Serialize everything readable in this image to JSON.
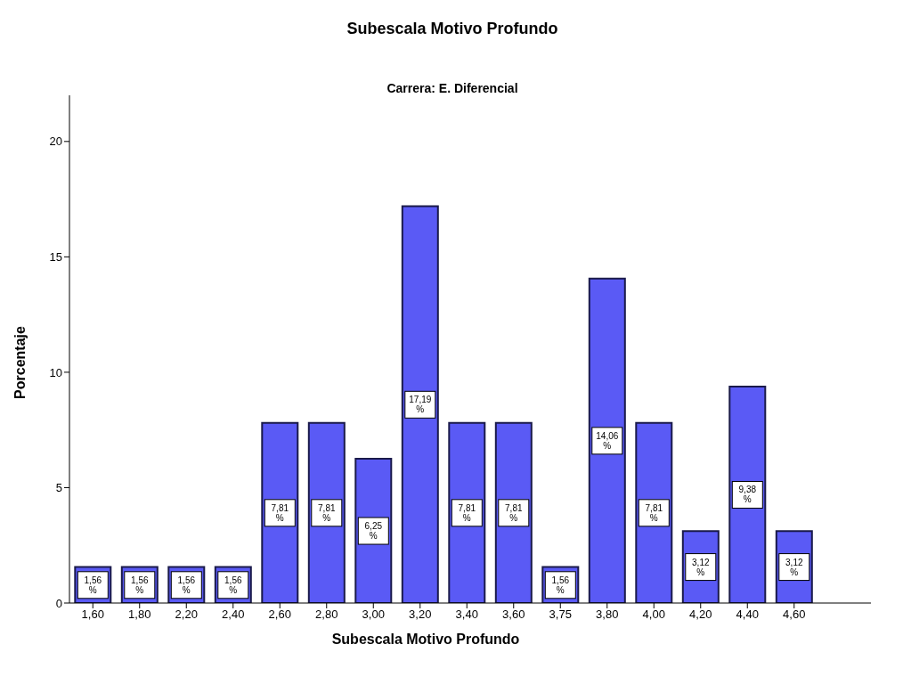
{
  "chart_data": {
    "type": "bar",
    "title": "Subescala Motivo Profundo",
    "subtitle": "Carrera: E. Diferencial",
    "xlabel": "Subescala Motivo Profundo",
    "ylabel": "Porcentaje",
    "categories": [
      "1,60",
      "1,80",
      "2,20",
      "2,40",
      "2,60",
      "2,80",
      "3,00",
      "3,20",
      "3,40",
      "3,60",
      "3,75",
      "3,80",
      "4,00",
      "4,20",
      "4,40",
      "4,60"
    ],
    "values": [
      1.56,
      1.56,
      1.56,
      1.56,
      7.81,
      7.81,
      6.25,
      17.19,
      7.81,
      7.81,
      1.56,
      14.06,
      7.81,
      3.12,
      9.38,
      3.12
    ],
    "value_labels": [
      "1,56 %",
      "1,56 %",
      "1,56 %",
      "1,56 %",
      "7,81 %",
      "7,81 %",
      "6,25 %",
      "17,19 %",
      "7,81 %",
      "7,81 %",
      "1,56 %",
      "14,06 %",
      "7,81 %",
      "3,12 %",
      "9,38 %",
      "3,12 %"
    ],
    "color": "#5a5af5",
    "ylim": [
      0,
      22
    ],
    "yticks": [
      0,
      5,
      10,
      15,
      20
    ],
    "grid": false,
    "legend": false
  }
}
